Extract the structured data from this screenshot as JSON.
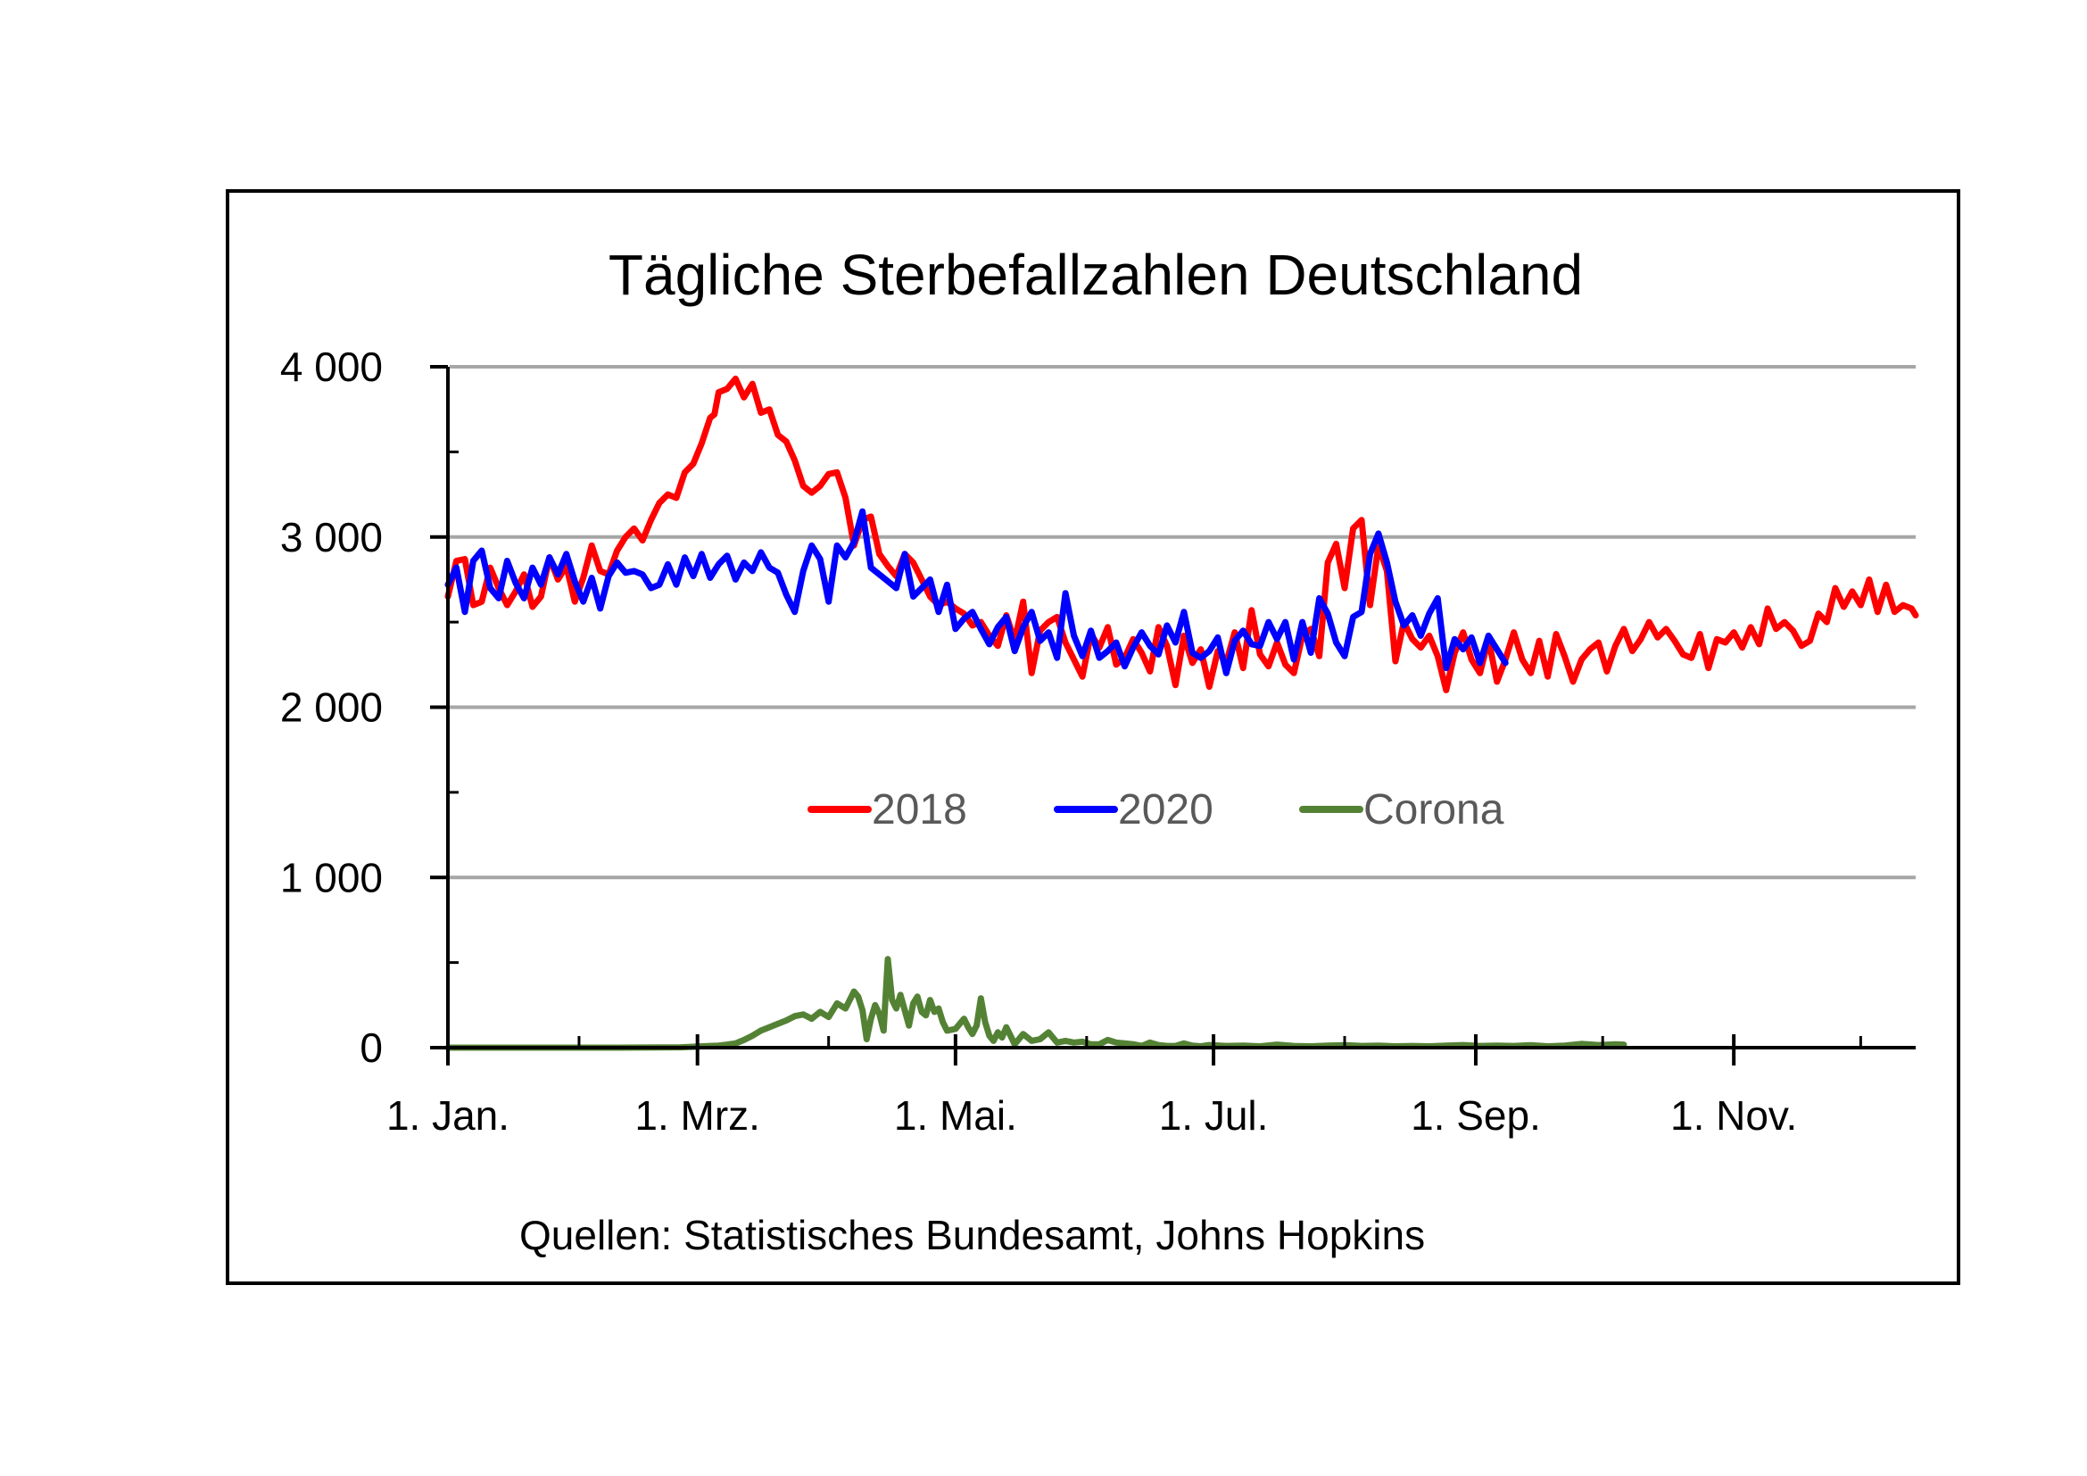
{
  "chart_data": {
    "type": "line",
    "title": "Tägliche Sterbefallzahlen Deutschland",
    "source": "Quellen: Statistisches Bundesamt, Johns Hopkins",
    "xlabel": "",
    "ylabel": "",
    "x_unit": "day of year (0 = 1. Jan.)",
    "xlim": [
      0,
      347
    ],
    "ylim": [
      0,
      4000
    ],
    "grid": true,
    "legend_position": "center",
    "yticks": [
      {
        "value": 0,
        "label": "0"
      },
      {
        "value": 1000,
        "label": "1 000"
      },
      {
        "value": 2000,
        "label": "2 000"
      },
      {
        "value": 3000,
        "label": "3 000"
      },
      {
        "value": 4000,
        "label": "4 000"
      }
    ],
    "y_minor_ticks": [
      500,
      1500,
      2500,
      3500
    ],
    "xticks": [
      {
        "value": 0,
        "label": "1. Jan."
      },
      {
        "value": 59,
        "label": "1. Mrz."
      },
      {
        "value": 120,
        "label": "1. Mai."
      },
      {
        "value": 181,
        "label": "1. Jul."
      },
      {
        "value": 243,
        "label": "1. Sep."
      },
      {
        "value": 304,
        "label": "1. Nov."
      }
    ],
    "x_minor_ticks": [
      31,
      90,
      151,
      212,
      273,
      334
    ],
    "series": [
      {
        "name": "2018",
        "color": "#FF0000",
        "x": [
          0,
          2,
          4,
          6,
          8,
          10,
          12,
          14,
          16,
          18,
          20,
          22,
          24,
          26,
          28,
          30,
          32,
          34,
          36,
          38,
          40,
          42,
          44,
          46,
          48,
          50,
          52,
          54,
          56,
          58,
          60,
          62,
          63,
          64,
          66,
          68,
          70,
          72,
          74,
          76,
          78,
          80,
          82,
          84,
          86,
          88,
          90,
          92,
          94,
          96,
          98,
          100,
          102,
          104,
          106,
          108,
          110,
          112,
          114,
          116,
          118,
          120,
          122,
          124,
          126,
          128,
          130,
          132,
          134,
          136,
          138,
          140,
          142,
          144,
          146,
          148,
          150,
          152,
          154,
          156,
          158,
          160,
          162,
          164,
          166,
          168,
          170,
          172,
          174,
          176,
          178,
          180,
          182,
          184,
          186,
          188,
          190,
          192,
          194,
          196,
          198,
          200,
          202,
          204,
          206,
          208,
          210,
          212,
          214,
          216,
          218,
          220,
          222,
          224,
          226,
          228,
          230,
          232,
          234,
          236,
          238,
          240,
          242,
          244,
          246,
          248,
          250,
          252,
          254,
          256,
          258,
          260,
          262,
          264,
          266,
          268,
          270,
          272,
          274,
          276,
          278,
          280,
          282,
          284,
          286,
          288,
          290,
          292,
          294,
          296,
          298,
          300,
          302,
          304,
          306,
          308,
          310,
          312,
          314,
          316,
          318,
          320,
          322,
          324,
          326,
          328,
          330,
          332,
          334,
          336,
          338,
          340,
          342,
          344,
          346,
          347
        ],
        "values": [
          2650,
          2860,
          2870,
          2600,
          2620,
          2820,
          2700,
          2600,
          2680,
          2780,
          2590,
          2650,
          2880,
          2750,
          2830,
          2620,
          2760,
          2950,
          2800,
          2780,
          2920,
          3000,
          3050,
          2980,
          3100,
          3200,
          3250,
          3230,
          3380,
          3430,
          3550,
          3700,
          3720,
          3850,
          3870,
          3930,
          3820,
          3900,
          3730,
          3750,
          3600,
          3560,
          3450,
          3300,
          3260,
          3300,
          3370,
          3380,
          3230,
          2950,
          3100,
          3120,
          2900,
          2830,
          2770,
          2900,
          2850,
          2750,
          2650,
          2600,
          2620,
          2580,
          2550,
          2480,
          2500,
          2420,
          2360,
          2540,
          2390,
          2620,
          2200,
          2450,
          2500,
          2530,
          2380,
          2280,
          2180,
          2430,
          2350,
          2470,
          2250,
          2290,
          2400,
          2320,
          2210,
          2470,
          2360,
          2130,
          2420,
          2260,
          2340,
          2120,
          2330,
          2260,
          2440,
          2230,
          2570,
          2310,
          2240,
          2380,
          2250,
          2200,
          2420,
          2460,
          2300,
          2850,
          2960,
          2700,
          3050,
          3100,
          2600,
          2950,
          2800,
          2270,
          2500,
          2400,
          2350,
          2420,
          2300,
          2100,
          2320,
          2440,
          2280,
          2200,
          2400,
          2150,
          2280,
          2440,
          2280,
          2200,
          2390,
          2180,
          2430,
          2300,
          2150,
          2280,
          2340,
          2380,
          2210,
          2360,
          2460,
          2330,
          2400,
          2500,
          2410,
          2460,
          2390,
          2310,
          2290,
          2430,
          2230,
          2400,
          2380,
          2440,
          2350,
          2470,
          2370,
          2580,
          2460,
          2500,
          2450,
          2360,
          2390,
          2550,
          2500,
          2700,
          2590,
          2680,
          2600,
          2750,
          2560,
          2720,
          2560,
          2600,
          2580,
          2540
        ]
      },
      {
        "name": "2020",
        "color": "#0000FF",
        "x": [
          0,
          2,
          4,
          6,
          8,
          10,
          12,
          14,
          16,
          18,
          20,
          22,
          24,
          26,
          28,
          30,
          32,
          34,
          36,
          38,
          40,
          42,
          44,
          46,
          48,
          50,
          52,
          54,
          56,
          58,
          60,
          62,
          64,
          66,
          68,
          70,
          72,
          74,
          76,
          78,
          80,
          82,
          84,
          86,
          88,
          90,
          92,
          94,
          96,
          98,
          100,
          102,
          104,
          106,
          108,
          110,
          112,
          114,
          116,
          118,
          120,
          122,
          124,
          126,
          128,
          130,
          132,
          134,
          136,
          138,
          140,
          142,
          144,
          146,
          148,
          150,
          152,
          154,
          156,
          158,
          160,
          162,
          164,
          166,
          168,
          170,
          172,
          174,
          176,
          178,
          180,
          182,
          184,
          186,
          188,
          190,
          192,
          194,
          196,
          198,
          200,
          202,
          204,
          206,
          208,
          210,
          212,
          214,
          216,
          218,
          220,
          222,
          224,
          226,
          228,
          230,
          232,
          234,
          236,
          238,
          240,
          242,
          244,
          246,
          248,
          250
        ],
        "values": [
          2720,
          2820,
          2560,
          2860,
          2920,
          2700,
          2640,
          2860,
          2730,
          2640,
          2820,
          2720,
          2880,
          2780,
          2900,
          2740,
          2620,
          2760,
          2580,
          2770,
          2850,
          2790,
          2800,
          2780,
          2700,
          2720,
          2840,
          2720,
          2880,
          2770,
          2900,
          2760,
          2840,
          2890,
          2750,
          2850,
          2800,
          2910,
          2820,
          2790,
          2660,
          2560,
          2800,
          2950,
          2870,
          2620,
          2950,
          2880,
          2970,
          3150,
          2820,
          2780,
          2740,
          2700,
          2900,
          2650,
          2700,
          2750,
          2560,
          2720,
          2460,
          2520,
          2560,
          2460,
          2370,
          2470,
          2530,
          2330,
          2470,
          2560,
          2390,
          2440,
          2290,
          2670,
          2420,
          2300,
          2450,
          2290,
          2330,
          2380,
          2240,
          2350,
          2440,
          2360,
          2310,
          2480,
          2380,
          2560,
          2320,
          2290,
          2330,
          2410,
          2200,
          2390,
          2450,
          2370,
          2360,
          2500,
          2400,
          2500,
          2280,
          2500,
          2320,
          2640,
          2550,
          2380,
          2300,
          2530,
          2560,
          2900,
          3020,
          2850,
          2620,
          2480,
          2540,
          2420,
          2550,
          2640,
          2230,
          2400,
          2340,
          2410,
          2260,
          2420,
          2340,
          2260
        ]
      },
      {
        "name": "Corona",
        "color": "#548235",
        "x": [
          0,
          40,
          55,
          58,
          60,
          62,
          64,
          66,
          68,
          70,
          72,
          74,
          76,
          78,
          80,
          82,
          84,
          86,
          88,
          90,
          92,
          94,
          96,
          97,
          98,
          99,
          100,
          101,
          102,
          103,
          104,
          105,
          106,
          107,
          108,
          109,
          110,
          111,
          112,
          113,
          114,
          115,
          116,
          117,
          118,
          120,
          121,
          122,
          123,
          124,
          125,
          126,
          127,
          128,
          129,
          130,
          131,
          132,
          133,
          134,
          136,
          138,
          140,
          142,
          144,
          146,
          148,
          150,
          152,
          154,
          156,
          158,
          160,
          162,
          164,
          166,
          168,
          170,
          172,
          174,
          176,
          178,
          180,
          184,
          188,
          192,
          196,
          200,
          204,
          208,
          212,
          216,
          220,
          224,
          228,
          232,
          236,
          240,
          244,
          248,
          252,
          256,
          260,
          264,
          268,
          272,
          276,
          278
        ],
        "values": [
          0,
          0,
          2,
          5,
          8,
          10,
          12,
          18,
          25,
          45,
          70,
          100,
          120,
          140,
          160,
          185,
          195,
          170,
          210,
          180,
          260,
          230,
          330,
          300,
          220,
          50,
          170,
          250,
          200,
          100,
          520,
          280,
          230,
          310,
          220,
          130,
          260,
          300,
          210,
          190,
          280,
          210,
          230,
          150,
          100,
          110,
          140,
          170,
          120,
          80,
          130,
          290,
          150,
          70,
          40,
          90,
          60,
          120,
          70,
          20,
          80,
          40,
          50,
          90,
          30,
          40,
          30,
          35,
          20,
          20,
          45,
          30,
          25,
          20,
          10,
          30,
          15,
          10,
          10,
          25,
          12,
          8,
          15,
          10,
          12,
          8,
          18,
          10,
          8,
          12,
          14,
          10,
          12,
          8,
          10,
          8,
          12,
          15,
          10,
          12,
          10,
          14,
          8,
          12,
          22,
          15,
          20,
          18
        ]
      }
    ]
  }
}
